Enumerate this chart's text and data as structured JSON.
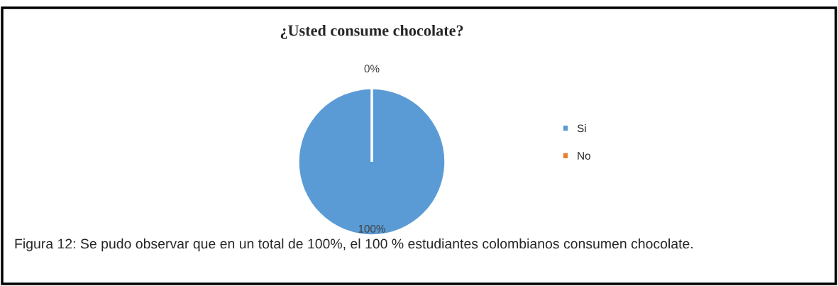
{
  "chart_data": {
    "type": "pie",
    "title": "¿Usted consume chocolate?",
    "categories": [
      "Si",
      "No"
    ],
    "values": [
      100,
      0
    ],
    "colors": [
      "#5b9bd5",
      "#ed7d31"
    ],
    "value_labels": [
      "100%",
      "0%"
    ],
    "legend": "right",
    "annotations": [
      "Figura 12: Se pudo observar que en un total de 100%, el 100 % estudiantes colombianos consumen chocolate."
    ]
  }
}
